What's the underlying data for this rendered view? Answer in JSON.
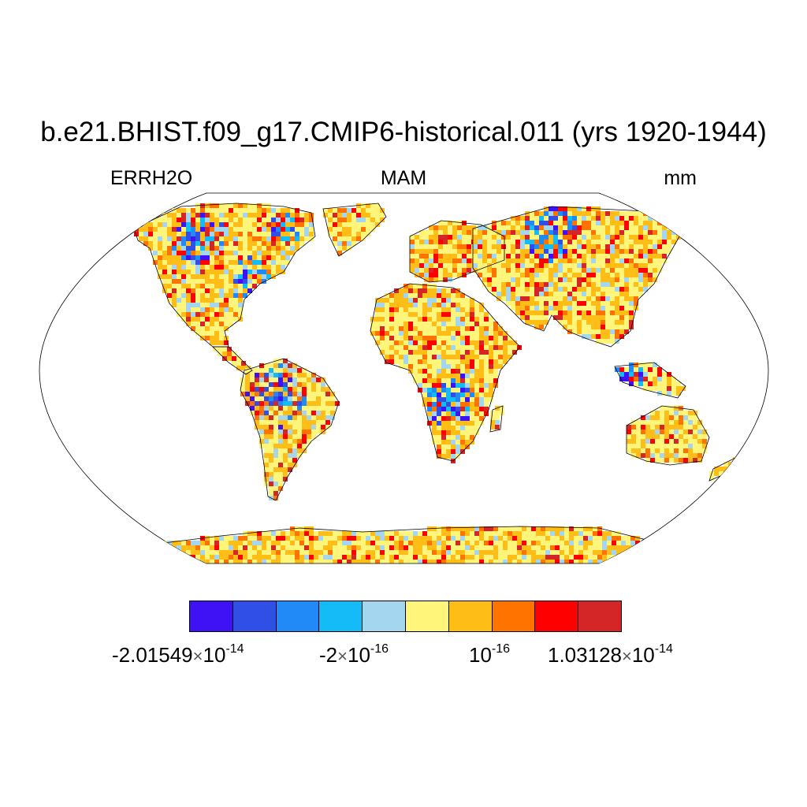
{
  "title": "b.e21.BHIST.f09_g17.CMIP6-historical.011 (yrs 1920-1944)",
  "left_label": "ERRH2O",
  "center_label": "MAM",
  "right_label": "mm",
  "ocean_color": "#ffffff",
  "coastline_color": "#000000",
  "colorbar": {
    "colors": [
      "#3f11f5",
      "#2f4fe6",
      "#218af7",
      "#14bbf7",
      "#a4d6f0",
      "#fff57a",
      "#ffbd17",
      "#ff7400",
      "#ff0000",
      "#d42626"
    ],
    "labels": [
      {
        "mantissa": "-2.01549",
        "times": "×",
        "base": "10",
        "exp": "-14"
      },
      {
        "mantissa": "-2",
        "times": "×",
        "base": "10",
        "exp": "-16"
      },
      {
        "mantissa": "",
        "times": "",
        "base": "10",
        "exp": "-16"
      },
      {
        "mantissa": "1.03128",
        "times": "×",
        "base": "10",
        "exp": "-14"
      }
    ]
  },
  "projection": "Robinson"
}
